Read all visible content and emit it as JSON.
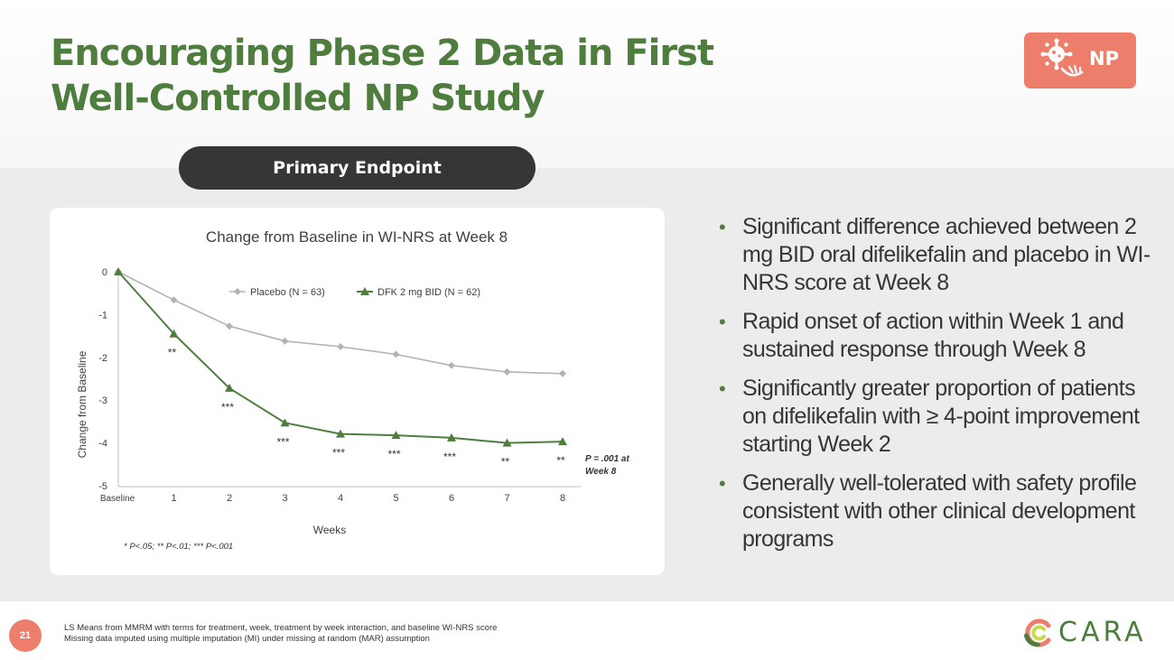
{
  "slide": {
    "title_line1": "Encouraging Phase 2 Data in First",
    "title_line2": "Well-Controlled NP Study",
    "badge_text": "NP",
    "badge_icon": "virus-scratching-hand-icon",
    "endpoint_label": "Primary Endpoint",
    "page_number": "21",
    "footnote_line1": "LS Means from MMRM with terms for treatment, week, treatment by week interaction, and baseline WI-NRS score",
    "footnote_line2": "Missing data imputed using multiple imputation (MI) under missing at random (MAR) assumption",
    "logo_text": "CARA",
    "colors": {
      "title_green": "#4e7d3e",
      "accent_coral": "#ee7e6c",
      "pill_dark": "#363636",
      "band_gray": "#ececed"
    }
  },
  "bullets": [
    "Significant difference achieved between 2 mg BID oral difelikefalin and placebo in WI-NRS score at Week 8",
    "Rapid onset of action within Week 1 and sustained response through Week 8",
    "Significantly greater proportion of patients on difelikefalin with ≥ 4-point improvement starting Week 2",
    "Generally well-tolerated with safety profile consistent with other clinical development programs"
  ],
  "chart_data": {
    "type": "line",
    "title": "Change from Baseline in WI-NRS at Week 8",
    "xlabel": "Weeks",
    "ylabel": "Change from Baseline",
    "categories": [
      "Baseline",
      "1",
      "2",
      "3",
      "4",
      "5",
      "6",
      "7",
      "8"
    ],
    "ylim": [
      -5,
      0
    ],
    "yticks": [
      "0",
      "-1",
      "-2",
      "-3",
      "-4",
      "-5"
    ],
    "grid": false,
    "legend_position": "top",
    "series": [
      {
        "name": "Placebo (N = 63)",
        "marker": "diamond",
        "color": "#b3b3b3",
        "values": [
          0,
          -0.66,
          -1.27,
          -1.62,
          -1.75,
          -1.93,
          -2.19,
          -2.34,
          -2.38
        ]
      },
      {
        "name": "DFK 2 mg BID (N = 62)",
        "marker": "triangle",
        "color": "#4e7d3e",
        "values": [
          0,
          -1.45,
          -2.72,
          -3.53,
          -3.79,
          -3.82,
          -3.88,
          -4.0,
          -3.97
        ],
        "significance": [
          "",
          "**",
          "***",
          "***",
          "***",
          "***",
          "***",
          "**",
          "**"
        ]
      }
    ],
    "annotation_line1": "P = .001 at",
    "annotation_line2": "Week 8",
    "note": "* P<.05; ** P<.01; *** P<.001"
  }
}
